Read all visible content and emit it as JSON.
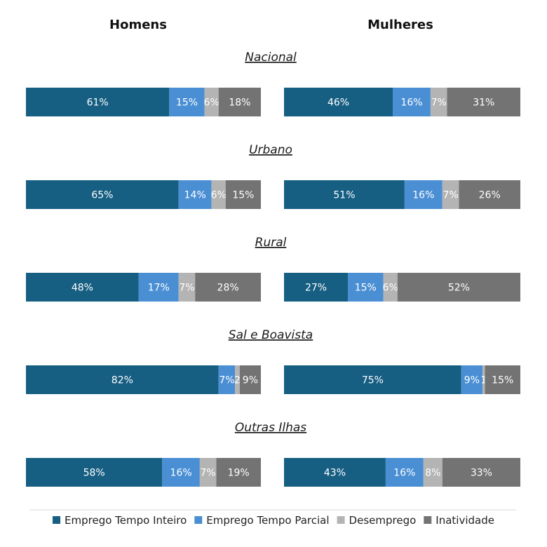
{
  "chart_data": {
    "type": "bar",
    "stacked": true,
    "orientation": "horizontal",
    "columns": [
      "Homens",
      "Mulheres"
    ],
    "groups": [
      {
        "title": "Nacional",
        "bars": [
          {
            "column": "Homens",
            "values": [
              61,
              15,
              6,
              18
            ],
            "labels": [
              "61%",
              "15%",
              "6%",
              "18%"
            ]
          },
          {
            "column": "Mulheres",
            "values": [
              46,
              16,
              7,
              31
            ],
            "labels": [
              "46%",
              "16%",
              "7%",
              "31%"
            ]
          }
        ]
      },
      {
        "title": "Urbano",
        "bars": [
          {
            "column": "Homens",
            "values": [
              65,
              14,
              6,
              15
            ],
            "labels": [
              "65%",
              "14%",
              "6%",
              "15%"
            ]
          },
          {
            "column": "Mulheres",
            "values": [
              51,
              16,
              7,
              26
            ],
            "labels": [
              "51%",
              "16%",
              "7%",
              "26%"
            ]
          }
        ]
      },
      {
        "title": "Rural",
        "bars": [
          {
            "column": "Homens",
            "values": [
              48,
              17,
              7,
              28
            ],
            "labels": [
              "48%",
              "17%",
              "7%",
              "28%"
            ]
          },
          {
            "column": "Mulheres",
            "values": [
              27,
              15,
              6,
              52
            ],
            "labels": [
              "27%",
              "15%",
              "6%",
              "52%"
            ]
          }
        ]
      },
      {
        "title": "Sal e Boavista",
        "bars": [
          {
            "column": "Homens",
            "values": [
              82,
              7,
              2,
              9
            ],
            "labels": [
              "82%",
              "7%",
              "2",
              "9%"
            ]
          },
          {
            "column": "Mulheres",
            "values": [
              75,
              9,
              1,
              15
            ],
            "labels": [
              "75%",
              "9%",
              "1",
              "15%"
            ]
          }
        ]
      },
      {
        "title": "Outras Ilhas",
        "bars": [
          {
            "column": "Homens",
            "values": [
              58,
              16,
              7,
              19
            ],
            "labels": [
              "58%",
              "16%",
              "7%",
              "19%"
            ]
          },
          {
            "column": "Mulheres",
            "values": [
              43,
              16,
              8,
              33
            ],
            "labels": [
              "43%",
              "16%",
              "8%",
              "33%"
            ]
          }
        ]
      }
    ],
    "series": [
      {
        "name": "Emprego Tempo Inteiro",
        "color": "#165e82"
      },
      {
        "name": "Emprego Tempo Parcial",
        "color": "#4a8fd4"
      },
      {
        "name": "Desemprego",
        "color": "#b4b4b4"
      },
      {
        "name": "Inatividade",
        "color": "#737373"
      }
    ],
    "xlim": [
      0,
      100
    ],
    "legend_position": "bottom",
    "grid": false
  }
}
